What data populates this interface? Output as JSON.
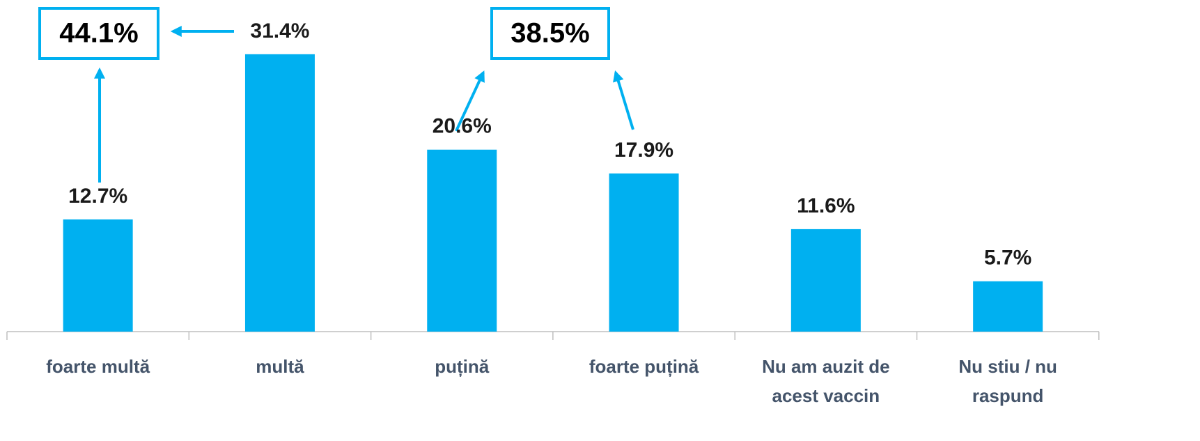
{
  "chart_data": {
    "type": "bar",
    "categories": [
      "foarte multă",
      "multă",
      "puțină",
      "foarte puțină",
      "Nu am auzit de acest vaccin",
      "Nu stiu / nu raspund"
    ],
    "values": [
      12.7,
      31.4,
      20.6,
      17.9,
      11.6,
      5.7
    ],
    "value_labels": [
      "12.7%",
      "31.4%",
      "20.6%",
      "17.9%",
      "11.6%",
      "5.7%"
    ],
    "color": "#00b0f0",
    "annotations": [
      {
        "label": "44.1%"
      },
      {
        "label": "38.5%"
      }
    ]
  }
}
